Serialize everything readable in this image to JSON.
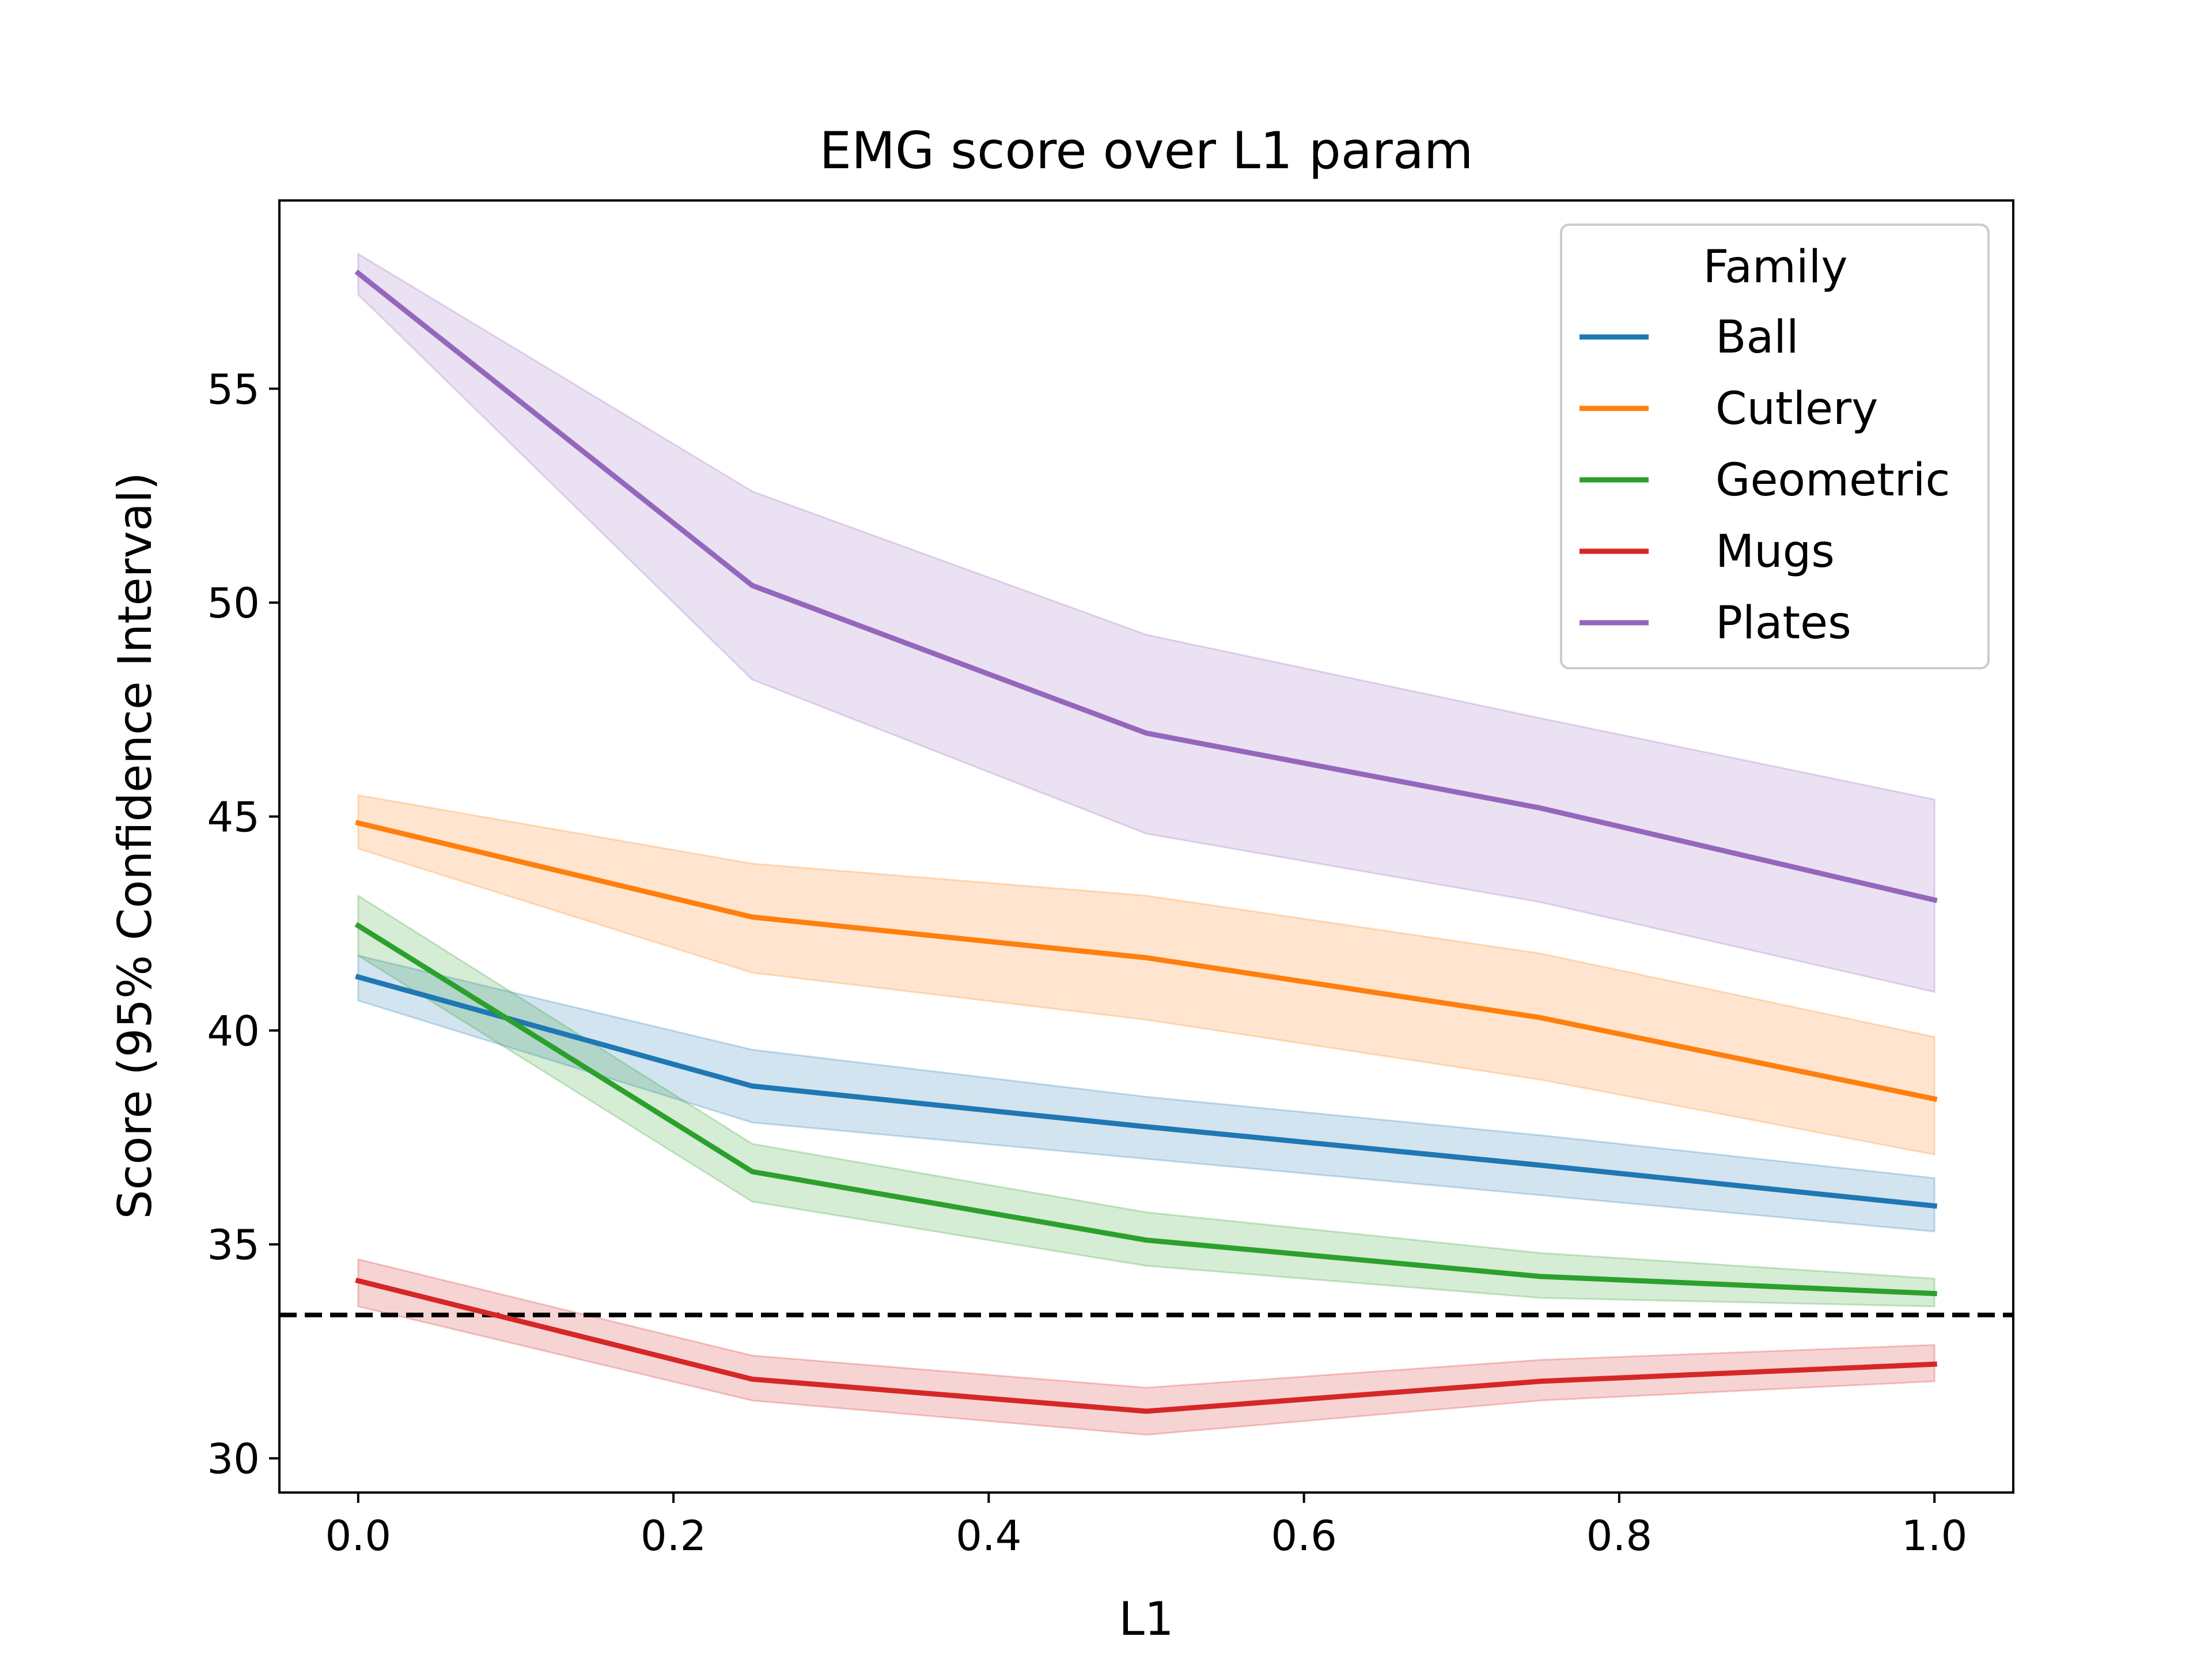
{
  "chart_data": {
    "type": "line",
    "title": "EMG score over L1 param",
    "xlabel": "L1",
    "ylabel": "Score (95% Confidence Interval)",
    "xlim": [
      -0.05,
      1.05
    ],
    "ylim": [
      29.2,
      59.4
    ],
    "xticks": [
      0.0,
      0.2,
      0.4,
      0.6,
      0.8,
      1.0
    ],
    "xtick_labels": [
      "0.0",
      "0.2",
      "0.4",
      "0.6",
      "0.8",
      "1.0"
    ],
    "yticks": [
      30,
      35,
      40,
      45,
      50,
      55
    ],
    "ytick_labels": [
      "30",
      "35",
      "40",
      "45",
      "50",
      "55"
    ],
    "grid": false,
    "legend": {
      "title": "Family",
      "placement": "top-right"
    },
    "reference_line": {
      "y": 33.35,
      "style": "dashed",
      "color": "#000000"
    },
    "x": [
      0.0,
      0.25,
      0.5,
      0.75,
      1.0
    ],
    "series": [
      {
        "name": "Ball",
        "color": "#1f77b4",
        "values": [
          41.25,
          38.7,
          37.75,
          36.85,
          35.9
        ],
        "lower": [
          40.7,
          37.85,
          37.0,
          36.15,
          35.3
        ],
        "upper": [
          41.75,
          39.55,
          38.45,
          37.55,
          36.55
        ]
      },
      {
        "name": "Cutlery",
        "color": "#ff7f0e",
        "values": [
          44.85,
          42.65,
          41.7,
          40.3,
          38.4
        ],
        "lower": [
          44.25,
          41.35,
          40.25,
          38.85,
          37.1
        ],
        "upper": [
          45.5,
          43.9,
          43.15,
          41.8,
          39.85
        ]
      },
      {
        "name": "Geometric",
        "color": "#2ca02c",
        "values": [
          42.45,
          36.7,
          35.1,
          34.25,
          33.85
        ],
        "lower": [
          41.75,
          36.0,
          34.5,
          33.75,
          33.55
        ],
        "upper": [
          43.15,
          37.35,
          35.75,
          34.8,
          34.2
        ]
      },
      {
        "name": "Mugs",
        "color": "#d62728",
        "values": [
          34.15,
          31.85,
          31.1,
          31.8,
          32.2
        ],
        "lower": [
          33.55,
          31.35,
          30.55,
          31.35,
          31.8
        ],
        "upper": [
          34.65,
          32.4,
          31.65,
          32.3,
          32.65
        ]
      },
      {
        "name": "Plates",
        "color": "#9467bd",
        "values": [
          57.7,
          50.4,
          46.95,
          45.2,
          43.05
        ],
        "lower": [
          57.2,
          48.2,
          44.6,
          43.0,
          40.9
        ],
        "upper": [
          58.15,
          52.6,
          49.25,
          47.3,
          45.4
        ]
      }
    ]
  }
}
